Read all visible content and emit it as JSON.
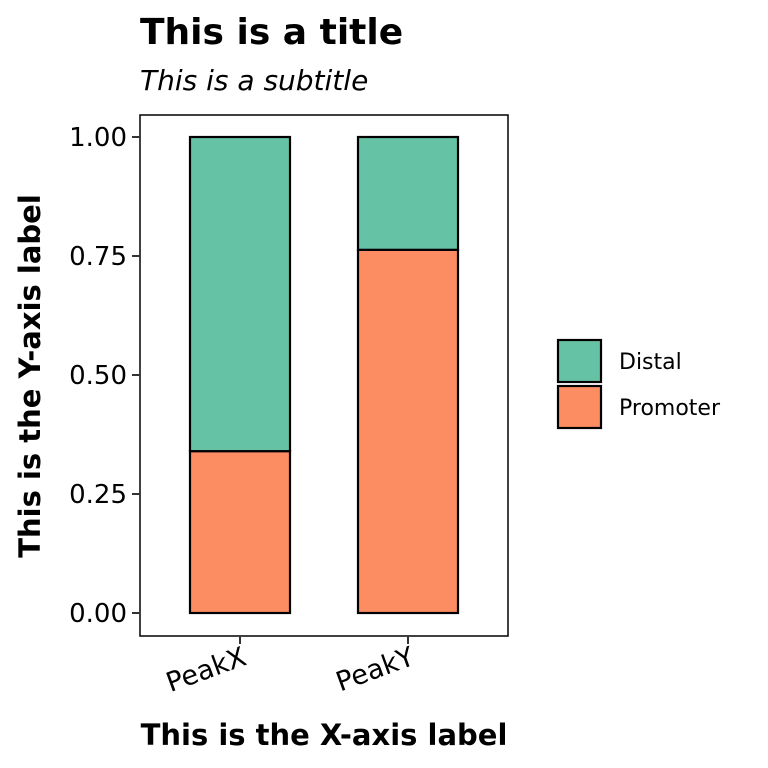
{
  "chart_data": {
    "type": "bar",
    "stacked": true,
    "title": "This is a title",
    "subtitle": "This is a subtitle",
    "xlabel": "This is the X-axis label",
    "ylabel": "This is the Y-axis label",
    "categories": [
      "PeakX",
      "PeakY"
    ],
    "series": [
      {
        "name": "Promoter",
        "values": [
          0.34,
          0.763
        ],
        "color": "#FC8D62"
      },
      {
        "name": "Distal",
        "values": [
          0.66,
          0.237
        ],
        "color": "#66C2A5"
      }
    ],
    "legend_order": [
      "Distal",
      "Promoter"
    ],
    "ylim": [
      0,
      1
    ],
    "yticks": [
      0.0,
      0.25,
      0.5,
      0.75,
      1.0
    ],
    "ytick_labels": [
      "0.00",
      "0.25",
      "0.50",
      "0.75",
      "1.00"
    ],
    "grid": false,
    "legend_position": "right"
  }
}
